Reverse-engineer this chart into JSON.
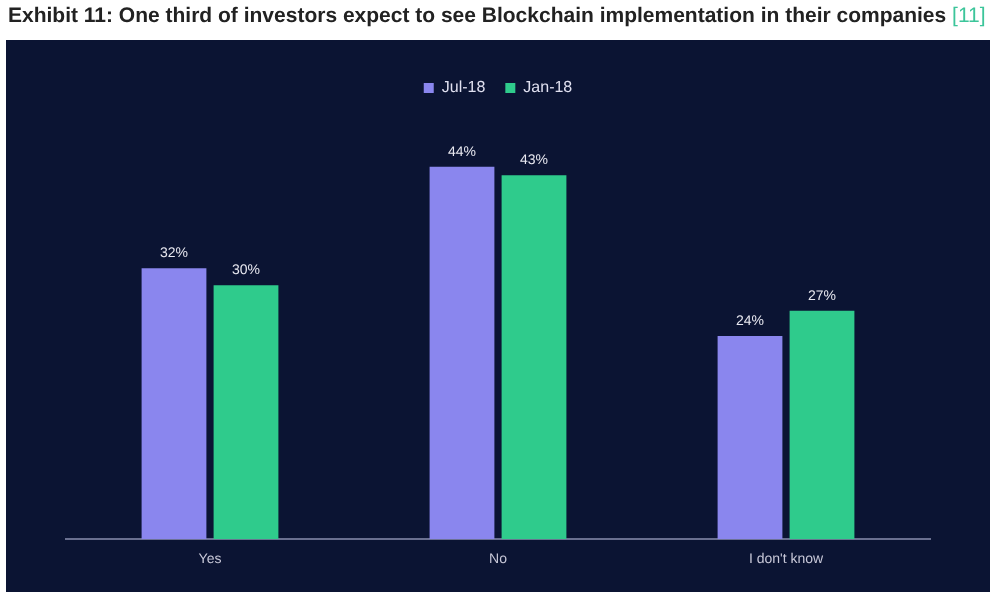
{
  "chart_data": {
    "type": "bar",
    "title": "Exhibit 11: One third of investors expect to see Blockchain implementation in their companies",
    "annotations": [
      "[11]"
    ],
    "categories": [
      "Yes",
      "No",
      "I don't know"
    ],
    "series": [
      {
        "name": "Jul-18",
        "color": "#8a86ee",
        "values": [
          32,
          44,
          24
        ],
        "value_labels": [
          "32%",
          "44%",
          "24%"
        ]
      },
      {
        "name": "Jan-18",
        "color": "#2fcb8c",
        "values": [
          30,
          43,
          27
        ],
        "value_labels": [
          "30%",
          "43%",
          "27%"
        ]
      }
    ],
    "legend": "top",
    "grid": false,
    "tick_labels": "x"
  }
}
